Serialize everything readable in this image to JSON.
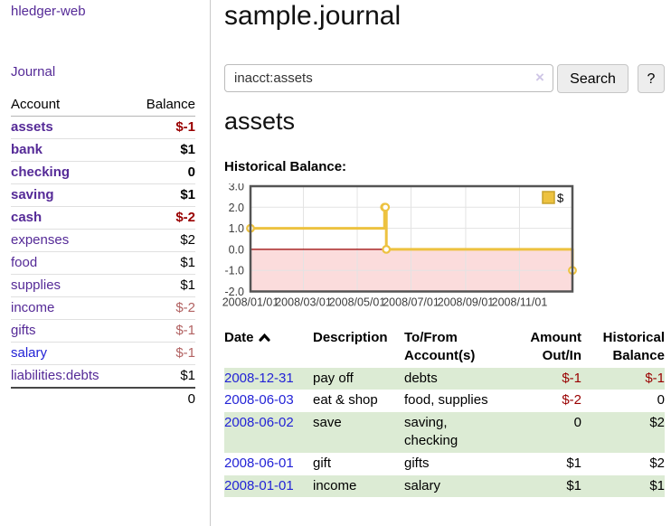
{
  "sidebar": {
    "app_title": "hledger-web",
    "journal_link": "Journal",
    "accounts_table": {
      "headers": {
        "account": "Account",
        "balance": "Balance"
      },
      "rows": [
        {
          "name": "assets",
          "balance": "$-1",
          "depth": 1,
          "bold": true,
          "unvisited": false
        },
        {
          "name": "bank",
          "balance": "$1",
          "depth": 2,
          "bold": true,
          "unvisited": false
        },
        {
          "name": "checking",
          "balance": "0",
          "depth": 3,
          "bold": true,
          "unvisited": false
        },
        {
          "name": "saving",
          "balance": "$1",
          "depth": 3,
          "bold": true,
          "unvisited": false
        },
        {
          "name": "cash",
          "balance": "$-2",
          "depth": 2,
          "bold": true,
          "unvisited": false
        },
        {
          "name": "expenses",
          "balance": "$2",
          "depth": 1,
          "bold": false,
          "unvisited": false
        },
        {
          "name": "food",
          "balance": "$1",
          "depth": 2,
          "bold": false,
          "unvisited": false
        },
        {
          "name": "supplies",
          "balance": "$1",
          "depth": 2,
          "bold": false,
          "unvisited": false
        },
        {
          "name": "income",
          "balance": "$-2",
          "depth": 1,
          "bold": false,
          "unvisited": false
        },
        {
          "name": "gifts",
          "balance": "$-1",
          "depth": 2,
          "bold": false,
          "unvisited": false
        },
        {
          "name": "salary",
          "balance": "$-1",
          "depth": 2,
          "bold": false,
          "unvisited": true
        },
        {
          "name": "liabilities:debts",
          "balance": "$1",
          "depth": 1,
          "bold": false,
          "unvisited": false
        }
      ],
      "total": "0"
    }
  },
  "header": {
    "title": "sample.journal"
  },
  "search": {
    "value": "inacct:assets",
    "clear_icon": "×",
    "button_label": "Search",
    "help_label": "?"
  },
  "account_page": {
    "heading": "assets",
    "chart_label": "Historical Balance:"
  },
  "chart_data": {
    "type": "line",
    "title": "Historical Balance:",
    "x_range": [
      "2008-01-01",
      "2008-12-31"
    ],
    "ylim": [
      -2,
      3
    ],
    "y_ticks": [
      3.0,
      2.0,
      1.0,
      0.0,
      -1.0,
      -2.0
    ],
    "x_ticks": [
      {
        "date": "2008-01-01",
        "label": "2008/01/01"
      },
      {
        "date": "2008-03-01",
        "label": "2008/03/01"
      },
      {
        "date": "2008-05-01",
        "label": "2008/05/01"
      },
      {
        "date": "2008-07-01",
        "label": "2008/07/01"
      },
      {
        "date": "2008-09-01",
        "label": "2008/09/01"
      },
      {
        "date": "2008-11-01",
        "label": "2008/11/01"
      }
    ],
    "series": [
      {
        "name": "$",
        "color": "#edc240",
        "steps": true,
        "points": [
          {
            "date": "2008-01-01",
            "value": 1
          },
          {
            "date": "2008-06-01",
            "value": 2
          },
          {
            "date": "2008-06-02",
            "value": 2
          },
          {
            "date": "2008-06-03",
            "value": 0
          },
          {
            "date": "2008-12-31",
            "value": -1
          }
        ]
      }
    ],
    "legend": {
      "label": "$",
      "position": "top-right"
    },
    "grid": true,
    "zero_line_color": "#990000",
    "negative_region_color": "#fbdcdc"
  },
  "register_table": {
    "headers": {
      "date": "Date",
      "description": "Description",
      "tofrom": "To/From Account(s)",
      "amount": "Amount Out/In",
      "historical": "Historical Balance"
    },
    "rows": [
      {
        "date": "2008-12-31",
        "description": "pay off",
        "tofrom": "debts",
        "amount": "$-1",
        "historical": "$-1"
      },
      {
        "date": "2008-06-03",
        "description": "eat & shop",
        "tofrom": "food, supplies",
        "amount": "$-2",
        "historical": "0"
      },
      {
        "date": "2008-06-02",
        "description": "save",
        "tofrom": "saving, checking",
        "amount": "0",
        "historical": "$2"
      },
      {
        "date": "2008-06-01",
        "description": "gift",
        "tofrom": "gifts",
        "amount": "$1",
        "historical": "$2"
      },
      {
        "date": "2008-01-01",
        "description": "income",
        "tofrom": "salary",
        "amount": "$1",
        "historical": "$1"
      }
    ]
  }
}
